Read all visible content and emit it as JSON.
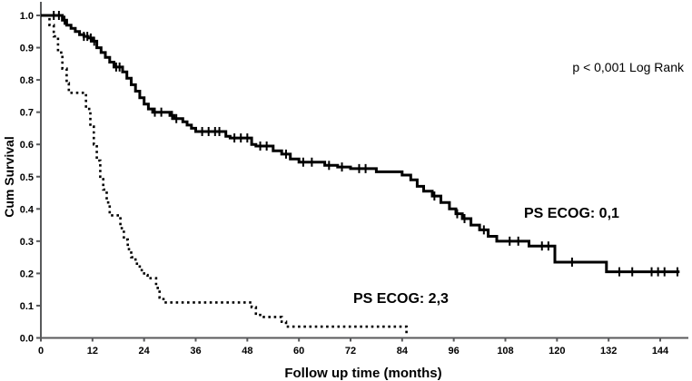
{
  "figure": {
    "background": "#ffffff",
    "annotation": "p < 0,001 Log Rank"
  },
  "chart_data": {
    "type": "line",
    "subtype": "kaplan-meier-survival",
    "title": "",
    "xlabel": "Follow up time (months)",
    "ylabel": "Cum Survival",
    "xlim": [
      0,
      150
    ],
    "ylim": [
      0.0,
      1.0
    ],
    "grid": false,
    "legend_position": "inline-labels",
    "colors": {
      "curve": "#000000",
      "axis": "#58595b",
      "text": "#000000"
    },
    "x_ticks": [
      {
        "value": 0,
        "label": "0"
      },
      {
        "value": 12,
        "label": "12"
      },
      {
        "value": 24,
        "label": "24"
      },
      {
        "value": 36,
        "label": "36"
      },
      {
        "value": 48,
        "label": "48"
      },
      {
        "value": 60,
        "label": "60"
      },
      {
        "value": 72,
        "label": "72"
      },
      {
        "value": 84,
        "label": "84"
      },
      {
        "value": 96,
        "label": "96"
      },
      {
        "value": 108,
        "label": "108"
      },
      {
        "value": 120,
        "label": "120"
      },
      {
        "value": 132,
        "label": "132"
      },
      {
        "value": 144,
        "label": "144"
      }
    ],
    "y_ticks": [
      {
        "value": 0.0,
        "label": "0.0"
      },
      {
        "value": 0.1,
        "label": "0.1"
      },
      {
        "value": 0.2,
        "label": "0.2"
      },
      {
        "value": 0.3,
        "label": "0.3"
      },
      {
        "value": 0.4,
        "label": "0.4"
      },
      {
        "value": 0.5,
        "label": "0.5"
      },
      {
        "value": 0.6,
        "label": "0.6"
      },
      {
        "value": 0.7,
        "label": "0.7"
      },
      {
        "value": 0.8,
        "label": "0.8"
      },
      {
        "value": 0.9,
        "label": "0.9"
      },
      {
        "value": 1.0,
        "label": "1.0"
      }
    ],
    "annotation": {
      "text": "p < 0,001 Log Rank",
      "position": "top-right"
    },
    "series": [
      {
        "name": "PS ECOG: 0,1",
        "line_style": "solid",
        "points": [
          [
            0,
            1.0
          ],
          [
            5,
            0.985
          ],
          [
            6,
            0.97
          ],
          [
            7,
            0.96
          ],
          [
            8,
            0.95
          ],
          [
            9,
            0.94
          ],
          [
            10,
            0.935
          ],
          [
            11,
            0.93
          ],
          [
            12,
            0.92
          ],
          [
            13,
            0.9
          ],
          [
            14,
            0.885
          ],
          [
            15,
            0.87
          ],
          [
            16,
            0.855
          ],
          [
            17,
            0.84
          ],
          [
            19,
            0.825
          ],
          [
            20,
            0.805
          ],
          [
            21,
            0.785
          ],
          [
            22,
            0.765
          ],
          [
            23,
            0.745
          ],
          [
            24,
            0.725
          ],
          [
            25,
            0.71
          ],
          [
            26,
            0.7
          ],
          [
            30,
            0.69
          ],
          [
            31,
            0.68
          ],
          [
            33,
            0.67
          ],
          [
            34,
            0.66
          ],
          [
            35,
            0.65
          ],
          [
            36,
            0.64
          ],
          [
            43,
            0.625
          ],
          [
            44,
            0.62
          ],
          [
            49,
            0.6
          ],
          [
            50,
            0.595
          ],
          [
            54,
            0.58
          ],
          [
            56,
            0.57
          ],
          [
            58,
            0.555
          ],
          [
            60,
            0.545
          ],
          [
            66,
            0.535
          ],
          [
            69,
            0.53
          ],
          [
            72,
            0.525
          ],
          [
            78,
            0.515
          ],
          [
            84,
            0.505
          ],
          [
            86,
            0.49
          ],
          [
            87.5,
            0.47
          ],
          [
            89,
            0.455
          ],
          [
            91,
            0.44
          ],
          [
            93,
            0.42
          ],
          [
            95,
            0.4
          ],
          [
            96.5,
            0.385
          ],
          [
            98,
            0.37
          ],
          [
            100,
            0.35
          ],
          [
            102,
            0.335
          ],
          [
            104,
            0.315
          ],
          [
            106,
            0.3
          ],
          [
            113.5,
            0.285
          ],
          [
            119.5,
            0.235
          ],
          [
            131.5,
            0.205
          ],
          [
            148.5,
            0.205
          ]
        ],
        "censor_marks": [
          [
            3,
            1.0
          ],
          [
            4.2,
            1.0
          ],
          [
            5.5,
            0.985
          ],
          [
            10,
            0.935
          ],
          [
            10.8,
            0.935
          ],
          [
            11.6,
            0.93
          ],
          [
            12.4,
            0.92
          ],
          [
            17.5,
            0.84
          ],
          [
            18.3,
            0.84
          ],
          [
            26.5,
            0.7
          ],
          [
            28,
            0.7
          ],
          [
            30.5,
            0.69
          ],
          [
            31.5,
            0.68
          ],
          [
            37.5,
            0.64
          ],
          [
            39,
            0.64
          ],
          [
            40.5,
            0.64
          ],
          [
            41.5,
            0.64
          ],
          [
            45,
            0.62
          ],
          [
            46.5,
            0.62
          ],
          [
            48,
            0.62
          ],
          [
            51,
            0.595
          ],
          [
            52.5,
            0.595
          ],
          [
            57,
            0.57
          ],
          [
            61,
            0.545
          ],
          [
            63,
            0.545
          ],
          [
            67,
            0.535
          ],
          [
            70,
            0.53
          ],
          [
            74,
            0.525
          ],
          [
            75.5,
            0.525
          ],
          [
            91.5,
            0.44
          ],
          [
            96.8,
            0.385
          ],
          [
            98.5,
            0.37
          ],
          [
            103,
            0.335
          ],
          [
            109,
            0.3
          ],
          [
            111,
            0.3
          ],
          [
            116.5,
            0.285
          ],
          [
            118,
            0.285
          ],
          [
            123.5,
            0.235
          ],
          [
            134.5,
            0.205
          ],
          [
            137.5,
            0.205
          ],
          [
            142,
            0.205
          ],
          [
            143.5,
            0.205
          ],
          [
            145,
            0.205
          ],
          [
            148,
            0.205
          ]
        ]
      },
      {
        "name": "PS ECOG: 2,3",
        "line_style": "dotted",
        "points": [
          [
            0,
            1.0
          ],
          [
            2,
            0.97
          ],
          [
            3,
            0.935
          ],
          [
            4,
            0.885
          ],
          [
            5,
            0.835
          ],
          [
            6,
            0.79
          ],
          [
            6.5,
            0.76
          ],
          [
            10.5,
            0.71
          ],
          [
            11.5,
            0.655
          ],
          [
            12.3,
            0.6
          ],
          [
            13,
            0.55
          ],
          [
            13.8,
            0.5
          ],
          [
            14.5,
            0.46
          ],
          [
            15.3,
            0.42
          ],
          [
            16,
            0.38
          ],
          [
            18.5,
            0.34
          ],
          [
            19.3,
            0.305
          ],
          [
            20.2,
            0.275
          ],
          [
            21,
            0.25
          ],
          [
            22,
            0.23
          ],
          [
            23,
            0.21
          ],
          [
            24,
            0.195
          ],
          [
            24.8,
            0.185
          ],
          [
            26.8,
            0.155
          ],
          [
            27.6,
            0.125
          ],
          [
            28.5,
            0.11
          ],
          [
            49,
            0.095
          ],
          [
            50,
            0.075
          ],
          [
            51,
            0.065
          ],
          [
            56,
            0.05
          ],
          [
            57,
            0.035
          ],
          [
            84.5,
            0.035
          ],
          [
            85,
            0.01
          ]
        ],
        "censor_marks": []
      }
    ]
  }
}
